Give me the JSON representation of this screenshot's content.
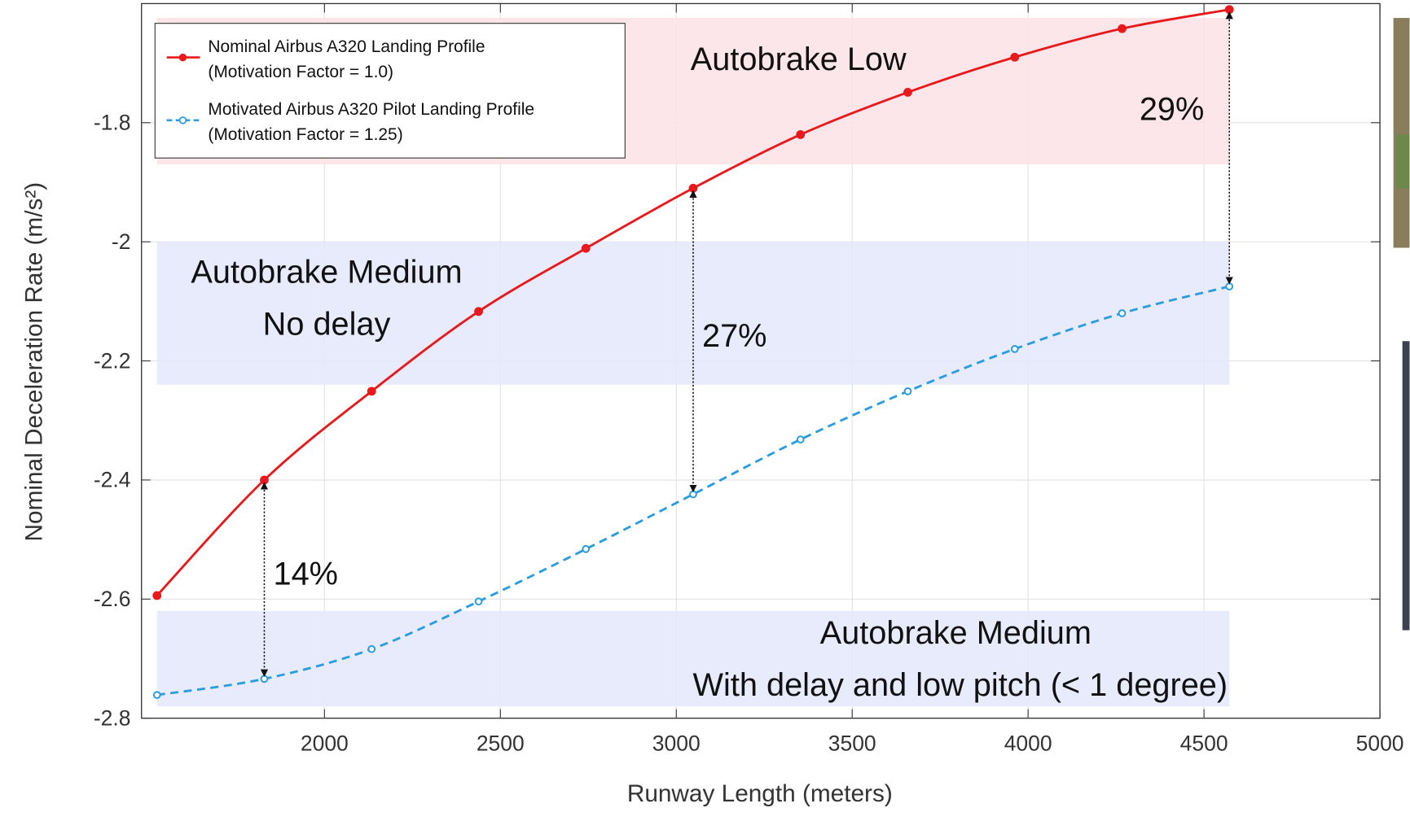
{
  "chart_data": {
    "type": "line",
    "xlabel": "Runway Length (meters)",
    "ylabel": "Nominal Deceleration Rate (m/s²)",
    "x": [
      1524,
      1829,
      2134,
      2438,
      2743,
      3048,
      3353,
      3658,
      3962,
      4267,
      4572
    ],
    "series": [
      {
        "name": "Nominal Airbus A320 Landing Profile (Motivation Factor = 1.0)",
        "color": "#e8191c",
        "dashed": false,
        "marker": "filled",
        "values": [
          -2.594,
          -2.4,
          -2.251,
          -2.117,
          -2.011,
          -1.91,
          -1.82,
          -1.749,
          -1.69,
          -1.642,
          -1.61
        ]
      },
      {
        "name": "Motivated Airbus A320 Pilot Landing Profile (Motivation Factor = 1.25)",
        "color": "#2a9de0",
        "dashed": true,
        "marker": "open",
        "values": [
          -2.761,
          -2.734,
          -2.684,
          -2.604,
          -2.516,
          -2.424,
          -2.332,
          -2.251,
          -2.18,
          -2.12,
          -2.075
        ]
      }
    ],
    "xlim": [
      1480,
      5000
    ],
    "ylim": [
      -2.8,
      -1.6
    ],
    "xticks": [
      2000,
      2500,
      3000,
      3500,
      4000,
      4500,
      5000
    ],
    "yticks": [
      -2.8,
      -2.6,
      -2.4,
      -2.2,
      -2,
      -1.8
    ],
    "grid": true,
    "legend": "upper left",
    "regions": [
      {
        "lines": [
          "Autobrake Low"
        ],
        "color": "#fde2e6",
        "xrange": [
          1524,
          4572
        ],
        "yrange": [
          -1.87,
          -1.624
        ]
      },
      {
        "lines": [
          "Autobrake Medium",
          "No delay"
        ],
        "color": "#e3e8fb",
        "xrange": [
          1524,
          4572
        ],
        "yrange": [
          -2.24,
          -2.0
        ]
      },
      {
        "lines": [
          "Autobrake Medium",
          "With delay and low pitch (< 1 degree)"
        ],
        "color": "#e3e8fb",
        "xrange": [
          1524,
          4572
        ],
        "yrange": [
          -2.78,
          -2.62
        ]
      }
    ],
    "annotations": [
      {
        "text": "14%",
        "x": 1829
      },
      {
        "text": "27%",
        "x": 3048
      },
      {
        "text": "29%",
        "x": 4572
      }
    ]
  }
}
